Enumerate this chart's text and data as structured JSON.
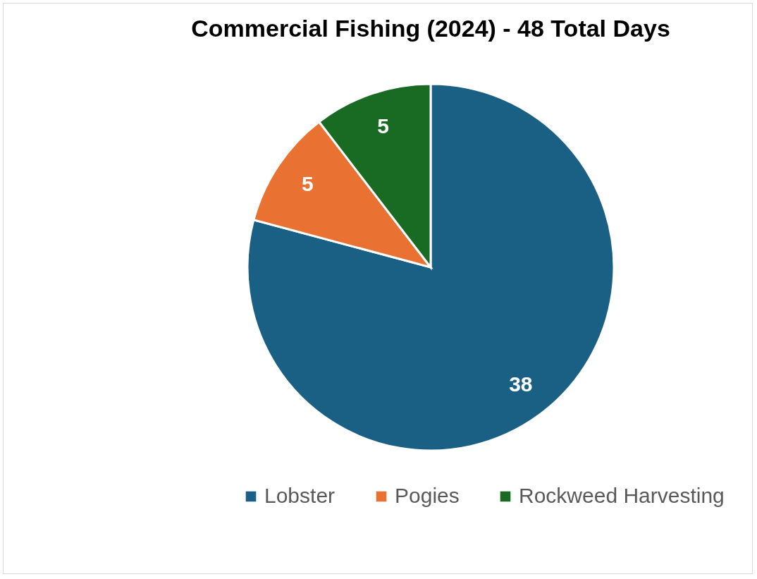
{
  "chart_data": {
    "type": "pie",
    "title": "Commercial Fishing (2024) - 48 Total Days",
    "categories": [
      "Lobster",
      "Pogies",
      "Rockweed Harvesting"
    ],
    "values": [
      38,
      5,
      5
    ],
    "colors": [
      "#1a6085",
      "#e97132",
      "#196b24"
    ],
    "data_labels": true,
    "legend": "bottom"
  }
}
